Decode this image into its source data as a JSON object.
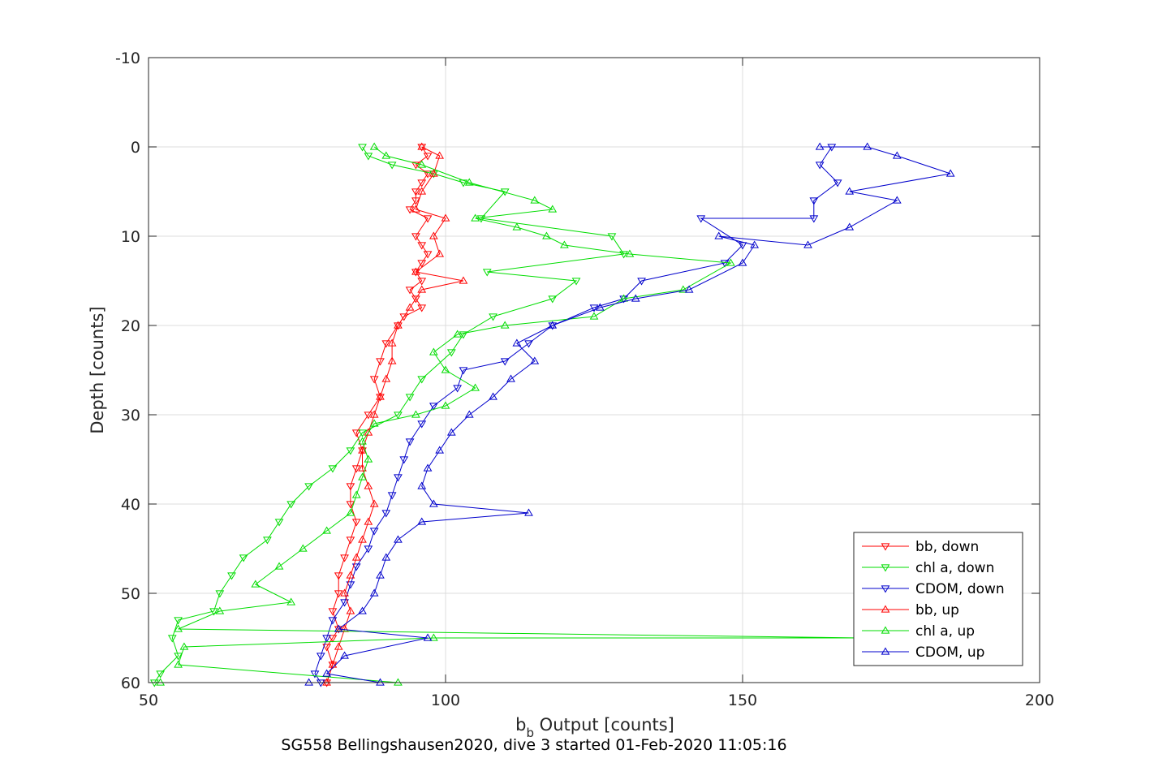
{
  "chart_data": {
    "type": "line",
    "xlabel_main": "b",
    "xlabel_sub": "b",
    "xlabel_rest": " Output [counts]",
    "ylabel": "Depth [counts]",
    "caption": "SG558 Bellingshausen2020, dive 3 started 01-Feb-2020 11:05:16",
    "xlim": [
      50,
      200
    ],
    "ylim": [
      -10,
      60
    ],
    "y_reversed": true,
    "grid": true,
    "legend_position": "bottom-right",
    "x_ticks": [
      50,
      100,
      150,
      200
    ],
    "y_ticks": [
      -10,
      0,
      10,
      20,
      30,
      40,
      50,
      60
    ],
    "series": [
      {
        "name": "bb, down",
        "color": "#ff0000",
        "marker": "triangle-down",
        "points": [
          [
            96,
            0
          ],
          [
            97,
            1
          ],
          [
            95,
            2
          ],
          [
            97,
            3
          ],
          [
            96,
            4
          ],
          [
            95,
            5
          ],
          [
            95,
            6
          ],
          [
            94,
            7
          ],
          [
            97,
            8
          ],
          [
            95,
            10
          ],
          [
            96,
            11
          ],
          [
            97,
            12
          ],
          [
            96,
            13
          ],
          [
            95,
            14
          ],
          [
            96,
            15
          ],
          [
            94,
            16
          ],
          [
            95,
            17
          ],
          [
            96,
            18
          ],
          [
            93,
            19
          ],
          [
            92,
            20
          ],
          [
            90,
            22
          ],
          [
            89,
            24
          ],
          [
            88,
            26
          ],
          [
            89,
            28
          ],
          [
            87,
            30
          ],
          [
            85,
            32
          ],
          [
            86,
            34
          ],
          [
            85,
            36
          ],
          [
            84,
            38
          ],
          [
            84,
            40
          ],
          [
            85,
            42
          ],
          [
            84,
            44
          ],
          [
            83,
            46
          ],
          [
            82,
            48
          ],
          [
            82,
            50
          ],
          [
            81,
            52
          ],
          [
            82,
            54
          ],
          [
            81,
            55
          ],
          [
            80,
            56
          ],
          [
            81,
            58
          ],
          [
            80,
            60
          ]
        ]
      },
      {
        "name": "chl a, down",
        "color": "#00dd00",
        "marker": "triangle-down",
        "points": [
          [
            86,
            0
          ],
          [
            87,
            1
          ],
          [
            91,
            2
          ],
          [
            98,
            3
          ],
          [
            103,
            4
          ],
          [
            110,
            5
          ],
          [
            106,
            8
          ],
          [
            128,
            10
          ],
          [
            130,
            12
          ],
          [
            107,
            14
          ],
          [
            122,
            15
          ],
          [
            118,
            17
          ],
          [
            108,
            19
          ],
          [
            103,
            21
          ],
          [
            101,
            23
          ],
          [
            96,
            26
          ],
          [
            94,
            28
          ],
          [
            92,
            30
          ],
          [
            86,
            32
          ],
          [
            84,
            34
          ],
          [
            81,
            36
          ],
          [
            77,
            38
          ],
          [
            74,
            40
          ],
          [
            72,
            42
          ],
          [
            70,
            44
          ],
          [
            66,
            46
          ],
          [
            64,
            48
          ],
          [
            62,
            50
          ],
          [
            61,
            52
          ],
          [
            55,
            53
          ],
          [
            54,
            55
          ],
          [
            55,
            57
          ],
          [
            52,
            59
          ],
          [
            51,
            60
          ]
        ]
      },
      {
        "name": "CDOM, down",
        "color": "#0000cc",
        "marker": "triangle-down",
        "points": [
          [
            165,
            0
          ],
          [
            163,
            2
          ],
          [
            166,
            4
          ],
          [
            162,
            6
          ],
          [
            162,
            8
          ],
          [
            143,
            8
          ],
          [
            150,
            11
          ],
          [
            147,
            13
          ],
          [
            133,
            15
          ],
          [
            130,
            17
          ],
          [
            125,
            18
          ],
          [
            118,
            20
          ],
          [
            114,
            22
          ],
          [
            110,
            24
          ],
          [
            103,
            25
          ],
          [
            102,
            27
          ],
          [
            98,
            29
          ],
          [
            96,
            31
          ],
          [
            94,
            33
          ],
          [
            93,
            35
          ],
          [
            92,
            37
          ],
          [
            91,
            39
          ],
          [
            90,
            41
          ],
          [
            88,
            43
          ],
          [
            87,
            45
          ],
          [
            85,
            47
          ],
          [
            84,
            49
          ],
          [
            83,
            51
          ],
          [
            81,
            53
          ],
          [
            80,
            55
          ],
          [
            79,
            57
          ],
          [
            78,
            59
          ],
          [
            79,
            60
          ]
        ]
      },
      {
        "name": "bb, up",
        "color": "#ff0000",
        "marker": "triangle-up",
        "points": [
          [
            80,
            60
          ],
          [
            81,
            58
          ],
          [
            82,
            56
          ],
          [
            83,
            54
          ],
          [
            84,
            52
          ],
          [
            83,
            50
          ],
          [
            84,
            48
          ],
          [
            85,
            46
          ],
          [
            86,
            44
          ],
          [
            87,
            42
          ],
          [
            88,
            40
          ],
          [
            87,
            38
          ],
          [
            86,
            36
          ],
          [
            86,
            34
          ],
          [
            87,
            32
          ],
          [
            88,
            30
          ],
          [
            89,
            28
          ],
          [
            90,
            26
          ],
          [
            91,
            24
          ],
          [
            91,
            22
          ],
          [
            92,
            20
          ],
          [
            94,
            18
          ],
          [
            96,
            16
          ],
          [
            103,
            15
          ],
          [
            95,
            14
          ],
          [
            99,
            12
          ],
          [
            98,
            10
          ],
          [
            100,
            8
          ],
          [
            95,
            7
          ],
          [
            96,
            5
          ],
          [
            98,
            3
          ],
          [
            99,
            1
          ],
          [
            96,
            0
          ]
        ]
      },
      {
        "name": "chl a, up",
        "color": "#00dd00",
        "marker": "triangle-up",
        "points": [
          [
            52,
            60
          ],
          [
            92,
            60
          ],
          [
            55,
            58
          ],
          [
            56,
            56
          ],
          [
            98,
            55
          ],
          [
            170,
            55
          ],
          [
            55,
            54
          ],
          [
            62,
            52
          ],
          [
            74,
            51
          ],
          [
            68,
            49
          ],
          [
            72,
            47
          ],
          [
            76,
            45
          ],
          [
            80,
            43
          ],
          [
            84,
            41
          ],
          [
            85,
            39
          ],
          [
            86,
            37
          ],
          [
            87,
            35
          ],
          [
            86,
            33
          ],
          [
            88,
            31
          ],
          [
            95,
            30
          ],
          [
            100,
            29
          ],
          [
            105,
            27
          ],
          [
            100,
            25
          ],
          [
            98,
            23
          ],
          [
            102,
            21
          ],
          [
            110,
            20
          ],
          [
            125,
            19
          ],
          [
            130,
            17
          ],
          [
            140,
            16
          ],
          [
            148,
            13
          ],
          [
            131,
            12
          ],
          [
            120,
            11
          ],
          [
            117,
            10
          ],
          [
            112,
            9
          ],
          [
            105,
            8
          ],
          [
            118,
            7
          ],
          [
            115,
            6
          ],
          [
            104,
            4
          ],
          [
            96,
            2
          ],
          [
            90,
            1
          ],
          [
            88,
            0
          ]
        ]
      },
      {
        "name": "CDOM, up",
        "color": "#0000cc",
        "marker": "triangle-up",
        "points": [
          [
            77,
            60
          ],
          [
            89,
            60
          ],
          [
            80,
            59
          ],
          [
            83,
            57
          ],
          [
            97,
            55
          ],
          [
            82,
            54
          ],
          [
            86,
            52
          ],
          [
            88,
            50
          ],
          [
            89,
            48
          ],
          [
            90,
            46
          ],
          [
            92,
            44
          ],
          [
            96,
            42
          ],
          [
            114,
            41
          ],
          [
            98,
            40
          ],
          [
            96,
            38
          ],
          [
            97,
            36
          ],
          [
            99,
            34
          ],
          [
            101,
            32
          ],
          [
            104,
            30
          ],
          [
            108,
            28
          ],
          [
            111,
            26
          ],
          [
            115,
            24
          ],
          [
            112,
            22
          ],
          [
            118,
            20
          ],
          [
            126,
            18
          ],
          [
            132,
            17
          ],
          [
            141,
            16
          ],
          [
            150,
            13
          ],
          [
            152,
            11
          ],
          [
            146,
            10
          ],
          [
            161,
            11
          ],
          [
            168,
            9
          ],
          [
            176,
            6
          ],
          [
            168,
            5
          ],
          [
            185,
            3
          ],
          [
            176,
            1
          ],
          [
            171,
            0
          ],
          [
            163,
            0
          ]
        ]
      }
    ]
  }
}
